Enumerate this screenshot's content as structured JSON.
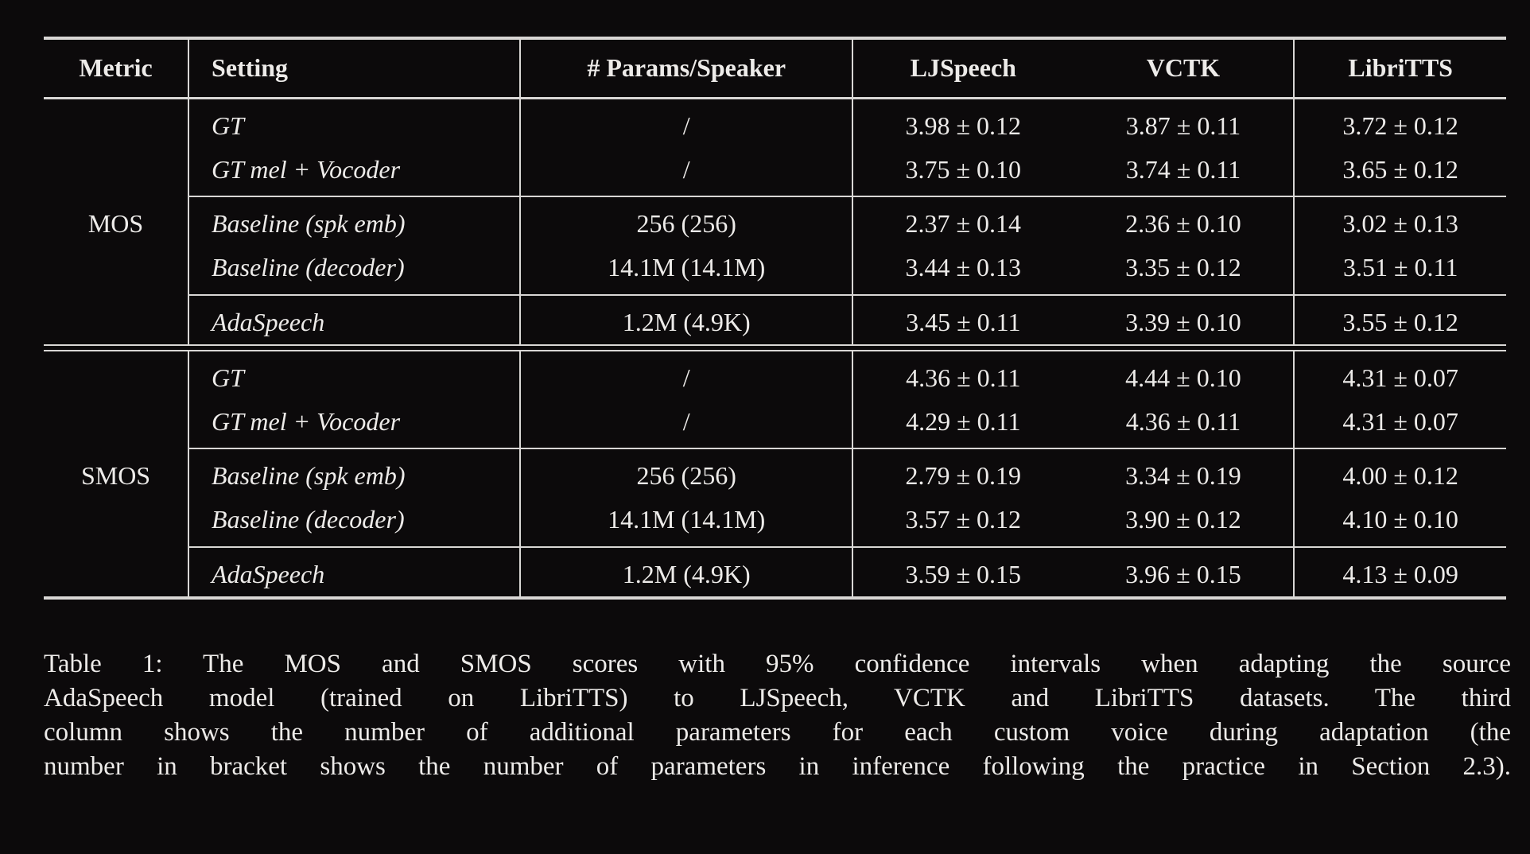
{
  "colors": {
    "background": "#0c0a0b",
    "text": "#edebe9",
    "rules": "#d9d7d5"
  },
  "table": {
    "header": {
      "metric": "Metric",
      "setting": "Setting",
      "params": "# Params/Speaker",
      "ljspeech": "LJSpeech",
      "vctk": "VCTK",
      "libritts": "LibriTTS"
    },
    "sections": [
      {
        "metric": "MOS",
        "groups": [
          {
            "rows": [
              {
                "setting": "GT",
                "params": "/",
                "ljspeech": "3.98 ± 0.12",
                "vctk": "3.87 ± 0.11",
                "libritts": "3.72 ± 0.12"
              },
              {
                "setting": "GT mel + Vocoder",
                "params": "/",
                "ljspeech": "3.75 ± 0.10",
                "vctk": "3.74 ± 0.11",
                "libritts": "3.65 ± 0.12"
              }
            ]
          },
          {
            "rows": [
              {
                "setting": "Baseline (spk emb)",
                "params": "256 (256)",
                "ljspeech": "2.37 ± 0.14",
                "vctk": "2.36 ± 0.10",
                "libritts": "3.02 ± 0.13"
              },
              {
                "setting": "Baseline (decoder)",
                "params": "14.1M (14.1M)",
                "ljspeech": "3.44 ± 0.13",
                "vctk": "3.35 ± 0.12",
                "libritts": "3.51 ± 0.11"
              }
            ]
          },
          {
            "rows": [
              {
                "setting": "AdaSpeech",
                "params": "1.2M (4.9K)",
                "ljspeech": "3.45 ± 0.11",
                "vctk": "3.39 ± 0.10",
                "libritts": "3.55 ± 0.12"
              }
            ]
          }
        ]
      },
      {
        "metric": "SMOS",
        "groups": [
          {
            "rows": [
              {
                "setting": "GT",
                "params": "/",
                "ljspeech": "4.36 ± 0.11",
                "vctk": "4.44 ± 0.10",
                "libritts": "4.31 ± 0.07"
              },
              {
                "setting": "GT mel + Vocoder",
                "params": "/",
                "ljspeech": "4.29 ± 0.11",
                "vctk": "4.36 ± 0.11",
                "libritts": "4.31 ± 0.07"
              }
            ]
          },
          {
            "rows": [
              {
                "setting": "Baseline (spk emb)",
                "params": "256 (256)",
                "ljspeech": "2.79 ± 0.19",
                "vctk": "3.34 ± 0.19",
                "libritts": "4.00 ± 0.12"
              },
              {
                "setting": "Baseline (decoder)",
                "params": "14.1M (14.1M)",
                "ljspeech": "3.57 ± 0.12",
                "vctk": "3.90 ± 0.12",
                "libritts": "4.10 ± 0.10"
              }
            ]
          },
          {
            "rows": [
              {
                "setting": "AdaSpeech",
                "params": "1.2M (4.9K)",
                "ljspeech": "3.59 ± 0.15",
                "vctk": "3.96 ± 0.15",
                "libritts": "4.13 ± 0.09"
              }
            ]
          }
        ]
      }
    ]
  },
  "caption": {
    "lines": [
      "Table 1:  The MOS and SMOS scores with 95% confidence intervals when adapting the source",
      "AdaSpeech model (trained on LibriTTS) to LJSpeech, VCTK and LibriTTS datasets.  The third",
      "column shows the number of additional parameters for each custom voice during adaptation (the",
      "number in bracket shows the number of parameters in inference following the practice in Section 2.3)."
    ]
  }
}
